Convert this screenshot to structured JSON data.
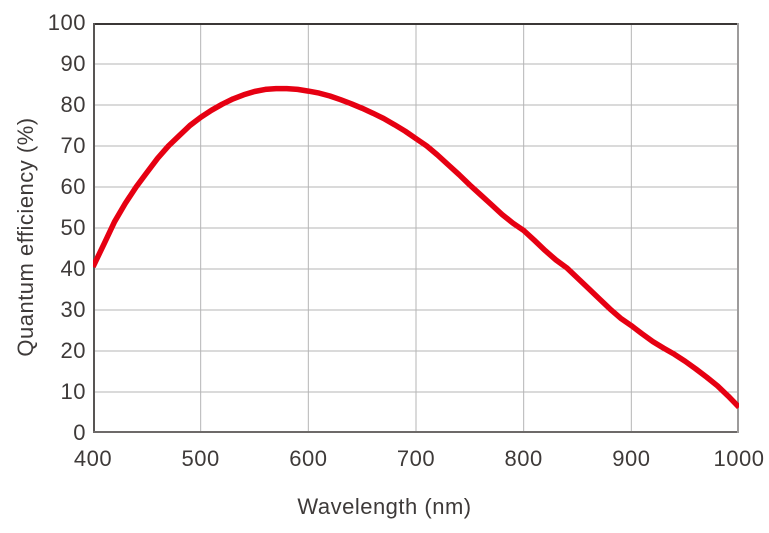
{
  "chart_data": {
    "type": "line",
    "title": "",
    "xlabel": "Wavelength (nm)",
    "ylabel": "Quantum efficiency (%)",
    "xlim": [
      400,
      1000
    ],
    "ylim": [
      0,
      100
    ],
    "x_ticks": [
      400,
      500,
      600,
      700,
      800,
      900,
      1000
    ],
    "y_ticks": [
      0,
      10,
      20,
      30,
      40,
      50,
      60,
      70,
      80,
      90,
      100
    ],
    "grid": true,
    "legend_position": "none",
    "series": [
      {
        "name": "Quantum efficiency",
        "color": "#e60012",
        "x": [
          400,
          410,
          420,
          430,
          440,
          450,
          460,
          470,
          480,
          490,
          500,
          510,
          520,
          530,
          540,
          550,
          560,
          570,
          580,
          590,
          600,
          610,
          620,
          630,
          640,
          650,
          660,
          670,
          680,
          690,
          700,
          710,
          720,
          730,
          740,
          750,
          760,
          770,
          780,
          790,
          800,
          810,
          820,
          830,
          840,
          850,
          860,
          870,
          880,
          890,
          900,
          910,
          920,
          930,
          940,
          950,
          960,
          970,
          980,
          990,
          1000
        ],
        "y": [
          40.5,
          46,
          51.5,
          56,
          60,
          63.5,
          67,
          70,
          72.5,
          75,
          77,
          78.7,
          80.2,
          81.5,
          82.5,
          83.3,
          83.8,
          84,
          84,
          83.8,
          83.4,
          82.9,
          82.2,
          81.3,
          80.3,
          79.2,
          78,
          76.7,
          75.2,
          73.6,
          71.8,
          70,
          67.8,
          65.4,
          63,
          60.5,
          58.1,
          55.7,
          53.3,
          51.2,
          49.4,
          47,
          44.5,
          42.2,
          40.3,
          37.8,
          35.3,
          32.8,
          30.3,
          28,
          26.2,
          24.2,
          22.3,
          20.7,
          19.2,
          17.5,
          15.6,
          13.6,
          11.5,
          9,
          6.3
        ]
      }
    ]
  },
  "colors": {
    "curve": "#e60012",
    "text": "#3e3a39",
    "grid": "#b5b5b6",
    "frame_top": "#3b3736",
    "frame_left": "#585554",
    "frame_bottom": "#6d6a69",
    "frame_right": "#9d9b9b",
    "background": "#ffffff"
  }
}
